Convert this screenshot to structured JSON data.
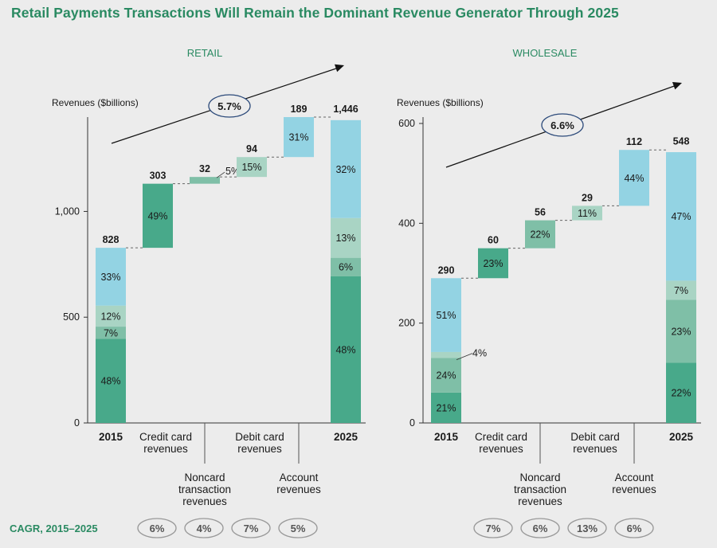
{
  "title": "Retail Payments Transactions Will Remain the Dominant Revenue Generator  Through 2025",
  "cagr_label": "CAGR, 2015–2025",
  "colors": {
    "title": "#2a8a62",
    "dark_green": "#48a98a",
    "mid_green": "#7fbfa7",
    "light_green": "#a9d4c4",
    "blue": "#93d3e3",
    "axis": "#333333"
  },
  "chart_data": [
    {
      "type": "bar",
      "subtype": "waterfall",
      "title": "RETAIL",
      "ylabel": "Revenues ($billions)",
      "ylim": [
        0,
        1446
      ],
      "yticks": [
        {
          "value": 0,
          "label": "0"
        },
        {
          "value": 500,
          "label": "500"
        },
        {
          "value": 1000,
          "label": "1,000"
        }
      ],
      "categories": [
        "2015",
        "Credit card revenues",
        "Noncard transaction revenues",
        "Debit card revenues",
        "Account revenues",
        "2025"
      ],
      "stack_order": [
        "Credit card",
        "Noncard transaction",
        "Debit card",
        "Account"
      ],
      "totals": [
        {
          "category": "2015",
          "value": 828,
          "label": "828",
          "shares": [
            {
              "label": "48%",
              "pct": 48
            },
            {
              "label": "7%",
              "pct": 7
            },
            {
              "label": "12%",
              "pct": 12
            },
            {
              "label": "33%",
              "pct": 33
            }
          ]
        },
        {
          "category": "2025",
          "value": 1446,
          "label": "1,446",
          "shares": [
            {
              "label": "48%",
              "pct": 48
            },
            {
              "label": "6%",
              "pct": 6
            },
            {
              "label": "13%",
              "pct": 13
            },
            {
              "label": "32%",
              "pct": 32
            }
          ]
        }
      ],
      "increments": [
        {
          "category": "Credit card revenues",
          "value": 303,
          "label": "303",
          "share_label": "49%",
          "color": "dark_green",
          "share_inside": true
        },
        {
          "category": "Noncard transaction revenues",
          "value": 32,
          "label": "32",
          "share_label": "5%",
          "color": "mid_green",
          "share_inside": false
        },
        {
          "category": "Debit card revenues",
          "value": 94,
          "label": "94",
          "share_label": "15%",
          "color": "light_green",
          "share_inside": true
        },
        {
          "category": "Account revenues",
          "value": 189,
          "label": "189",
          "share_label": "31%",
          "color": "blue",
          "share_inside": true
        }
      ],
      "overall_cagr": "5.7%",
      "segment_cagr": [
        "6%",
        "4%",
        "7%",
        "5%"
      ],
      "axis_labels": {
        "top": [
          {
            "text": "2015",
            "bold": true
          },
          {
            "text": "Credit card\nrevenues"
          },
          {
            "text": "Debit card\nrevenues"
          },
          {
            "text": "2025",
            "bold": true
          }
        ],
        "bottom": [
          {
            "text": "Noncard\ntransaction\nrevenues"
          },
          {
            "text": "Account\nrevenues"
          }
        ]
      }
    },
    {
      "type": "bar",
      "subtype": "waterfall",
      "title": "WHOLESALE",
      "ylabel": "Revenues ($billions)",
      "ylim": [
        0,
        600
      ],
      "yticks": [
        {
          "value": 0,
          "label": "0"
        },
        {
          "value": 200,
          "label": "200"
        },
        {
          "value": 400,
          "label": "400"
        },
        {
          "value": 600,
          "label": "600"
        }
      ],
      "categories": [
        "2015",
        "Credit card revenues",
        "Noncard transaction revenues",
        "Debit card revenues",
        "Account revenues",
        "2025"
      ],
      "stack_order": [
        "Noncard transaction",
        "Credit card",
        "Debit card",
        "Account"
      ],
      "totals": [
        {
          "category": "2015",
          "value": 290,
          "label": "290",
          "shares": [
            {
              "label": "21%",
              "pct": 21
            },
            {
              "label": "24%",
              "pct": 24
            },
            {
              "label": "4%",
              "pct": 4,
              "callout": true
            },
            {
              "label": "51%",
              "pct": 51
            }
          ]
        },
        {
          "category": "2025",
          "value": 548,
          "label": "548",
          "shares": [
            {
              "label": "22%",
              "pct": 22
            },
            {
              "label": "23%",
              "pct": 23
            },
            {
              "label": "7%",
              "pct": 7
            },
            {
              "label": "47%",
              "pct": 47
            }
          ]
        }
      ],
      "increments": [
        {
          "category": "Credit card revenues",
          "value": 60,
          "label": "60",
          "share_label": "23%",
          "color": "dark_green",
          "share_inside": true
        },
        {
          "category": "Noncard transaction revenues",
          "value": 56,
          "label": "56",
          "share_label": "22%",
          "color": "mid_green",
          "share_inside": true
        },
        {
          "category": "Debit card revenues",
          "value": 29,
          "label": "29",
          "share_label": "11%",
          "color": "light_green",
          "share_inside": true
        },
        {
          "category": "Account revenues",
          "value": 112,
          "label": "112",
          "share_label": "44%",
          "color": "blue",
          "share_inside": true
        }
      ],
      "overall_cagr": "6.6%",
      "segment_cagr": [
        "7%",
        "6%",
        "13%",
        "6%"
      ],
      "axis_labels": {
        "top": [
          {
            "text": "2015",
            "bold": true
          },
          {
            "text": "Credit card\nrevenues"
          },
          {
            "text": "Debit card\nrevenues"
          },
          {
            "text": "2025",
            "bold": true
          }
        ],
        "bottom": [
          {
            "text": "Noncard\ntransaction\nrevenues"
          },
          {
            "text": "Account\nrevenues"
          }
        ]
      }
    }
  ]
}
